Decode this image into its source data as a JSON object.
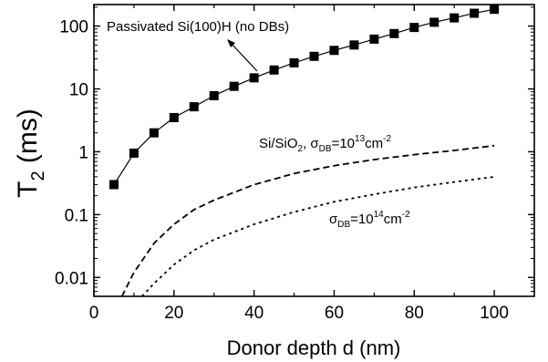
{
  "chart_data": {
    "type": "line",
    "xlabel": "Donor depth d (nm)",
    "ylabel_main": "T",
    "ylabel_sub": "2",
    "ylabel_unit": " (ms)",
    "xlim": [
      0,
      110
    ],
    "ylim": [
      0.005,
      220
    ],
    "yscale": "log",
    "x_ticks": [
      "0",
      "20",
      "40",
      "60",
      "80",
      "100"
    ],
    "y_ticks": [
      "0.01",
      "0.1",
      "1",
      "10",
      "100"
    ],
    "grid": false,
    "series": [
      {
        "name": "Passivated Si(100)H (no DBs)",
        "style": "solid-with-square-markers",
        "x": [
          5,
          10,
          15,
          20,
          25,
          30,
          35,
          40,
          45,
          50,
          55,
          60,
          65,
          70,
          75,
          80,
          85,
          90,
          95,
          100
        ],
        "y": [
          0.3,
          0.95,
          2.0,
          3.5,
          5.2,
          7.8,
          11,
          15,
          20,
          26,
          33,
          41,
          50,
          62,
          76,
          95,
          115,
          135,
          160,
          185
        ]
      },
      {
        "name": "Si/SiO2, σDB=10^13 cm^-2",
        "style": "dashed",
        "x": [
          7,
          10,
          15,
          20,
          25,
          30,
          40,
          50,
          60,
          70,
          80,
          90,
          100
        ],
        "y": [
          0.005,
          0.012,
          0.035,
          0.07,
          0.12,
          0.17,
          0.3,
          0.45,
          0.6,
          0.75,
          0.9,
          1.05,
          1.25
        ]
      },
      {
        "name": "σDB=10^14 cm^-2",
        "style": "dotted",
        "x": [
          12,
          15,
          20,
          25,
          30,
          40,
          50,
          60,
          70,
          80,
          90,
          100
        ],
        "y": [
          0.005,
          0.008,
          0.016,
          0.027,
          0.04,
          0.07,
          0.11,
          0.16,
          0.21,
          0.27,
          0.33,
          0.4
        ]
      }
    ],
    "annotations": {
      "passivated_label": "Passivated Si(100)H (no DBs)",
      "sio2_label_a": "Si/SiO",
      "sio2_label_a_sub": "2",
      "sio2_label_b": ", σ",
      "sio2_label_b_sub": "DB",
      "sio2_label_c": "=10",
      "sio2_label_c_sup": "13",
      "sio2_label_d": "cm",
      "sio2_label_d_sup": "-2",
      "sigma14_label_a": "σ",
      "sigma14_label_a_sub": "DB",
      "sigma14_label_b": "=10",
      "sigma14_label_b_sup": "14",
      "sigma14_label_c": "cm",
      "sigma14_label_c_sup": "-2"
    }
  }
}
